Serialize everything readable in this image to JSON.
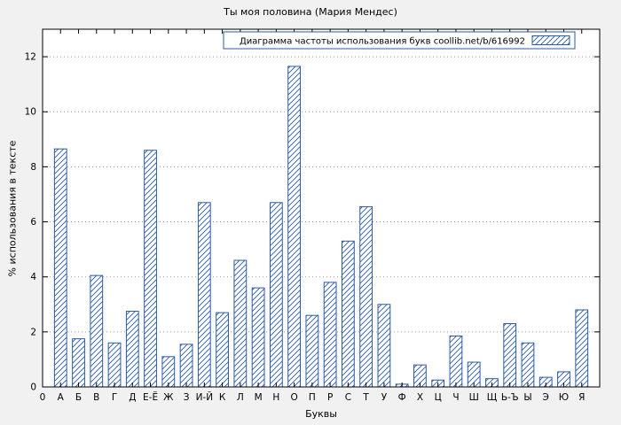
{
  "chart_data": {
    "type": "bar",
    "title": "Ты моя половина (Мария Мендес)",
    "legend": "Диаграмма частоты использования букв coollib.net/b/616992",
    "xlabel": "Буквы",
    "ylabel": "% использования в тексте",
    "x_origin_label": "0",
    "categories": [
      "А",
      "Б",
      "В",
      "Г",
      "Д",
      "Е-Ё",
      "Ж",
      "З",
      "И-Й",
      "К",
      "Л",
      "М",
      "Н",
      "О",
      "П",
      "Р",
      "С",
      "Т",
      "У",
      "Ф",
      "Х",
      "Ц",
      "Ч",
      "Ш",
      "Щ",
      "Ь-Ъ",
      "Ы",
      "Э",
      "Ю",
      "Я"
    ],
    "values": [
      8.65,
      1.75,
      4.05,
      1.6,
      2.75,
      8.6,
      1.1,
      1.55,
      6.7,
      2.7,
      4.6,
      3.6,
      6.7,
      11.65,
      2.6,
      3.8,
      5.3,
      6.55,
      3.0,
      0.1,
      0.8,
      0.25,
      1.85,
      0.9,
      0.3,
      2.3,
      1.6,
      0.35,
      0.55,
      2.8
    ],
    "ylim": [
      0,
      13
    ],
    "yticks": [
      0,
      2,
      4,
      6,
      8,
      10,
      12
    ],
    "grid": "horizontal-dotted",
    "legend_position": "top-right-inside",
    "colors": {
      "bar": "#2d5aa0",
      "plot_background": "#ffffff",
      "figure_background": "#f1f1f1",
      "grid": "#999999",
      "axis": "#000000"
    }
  }
}
